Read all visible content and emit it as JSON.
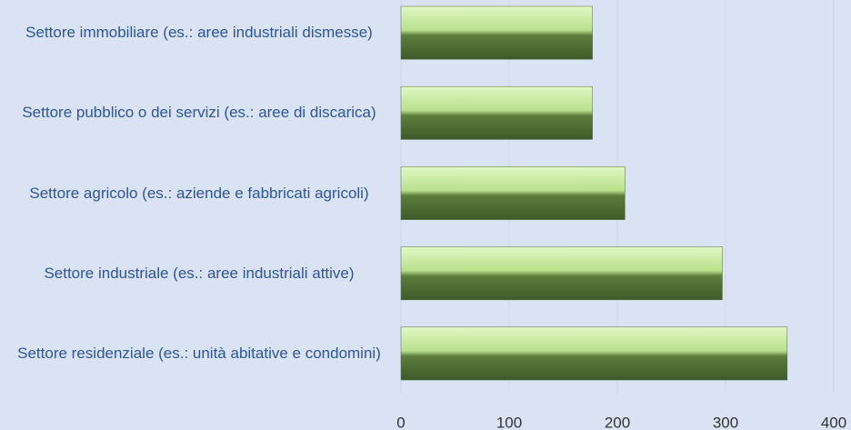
{
  "chart_data": {
    "type": "bar",
    "orientation": "horizontal",
    "categories": [
      "Settore immobiliare (es.: aree industriali dismesse)",
      "Settore pubblico o dei servizi (es.: aree di discarica)",
      "Settore agricolo (es.: aziende e fabbricati agricoli)",
      "Settore industriale (es.: aree industriali attive)",
      "Settore residenziale (es.: unità abitative e condomini)"
    ],
    "values": [
      177,
      177,
      207,
      297,
      357
    ],
    "color": "#8cb060",
    "xlim": [
      0,
      400
    ],
    "xticks": [
      0,
      100,
      200,
      300,
      400
    ],
    "grid": true
  }
}
